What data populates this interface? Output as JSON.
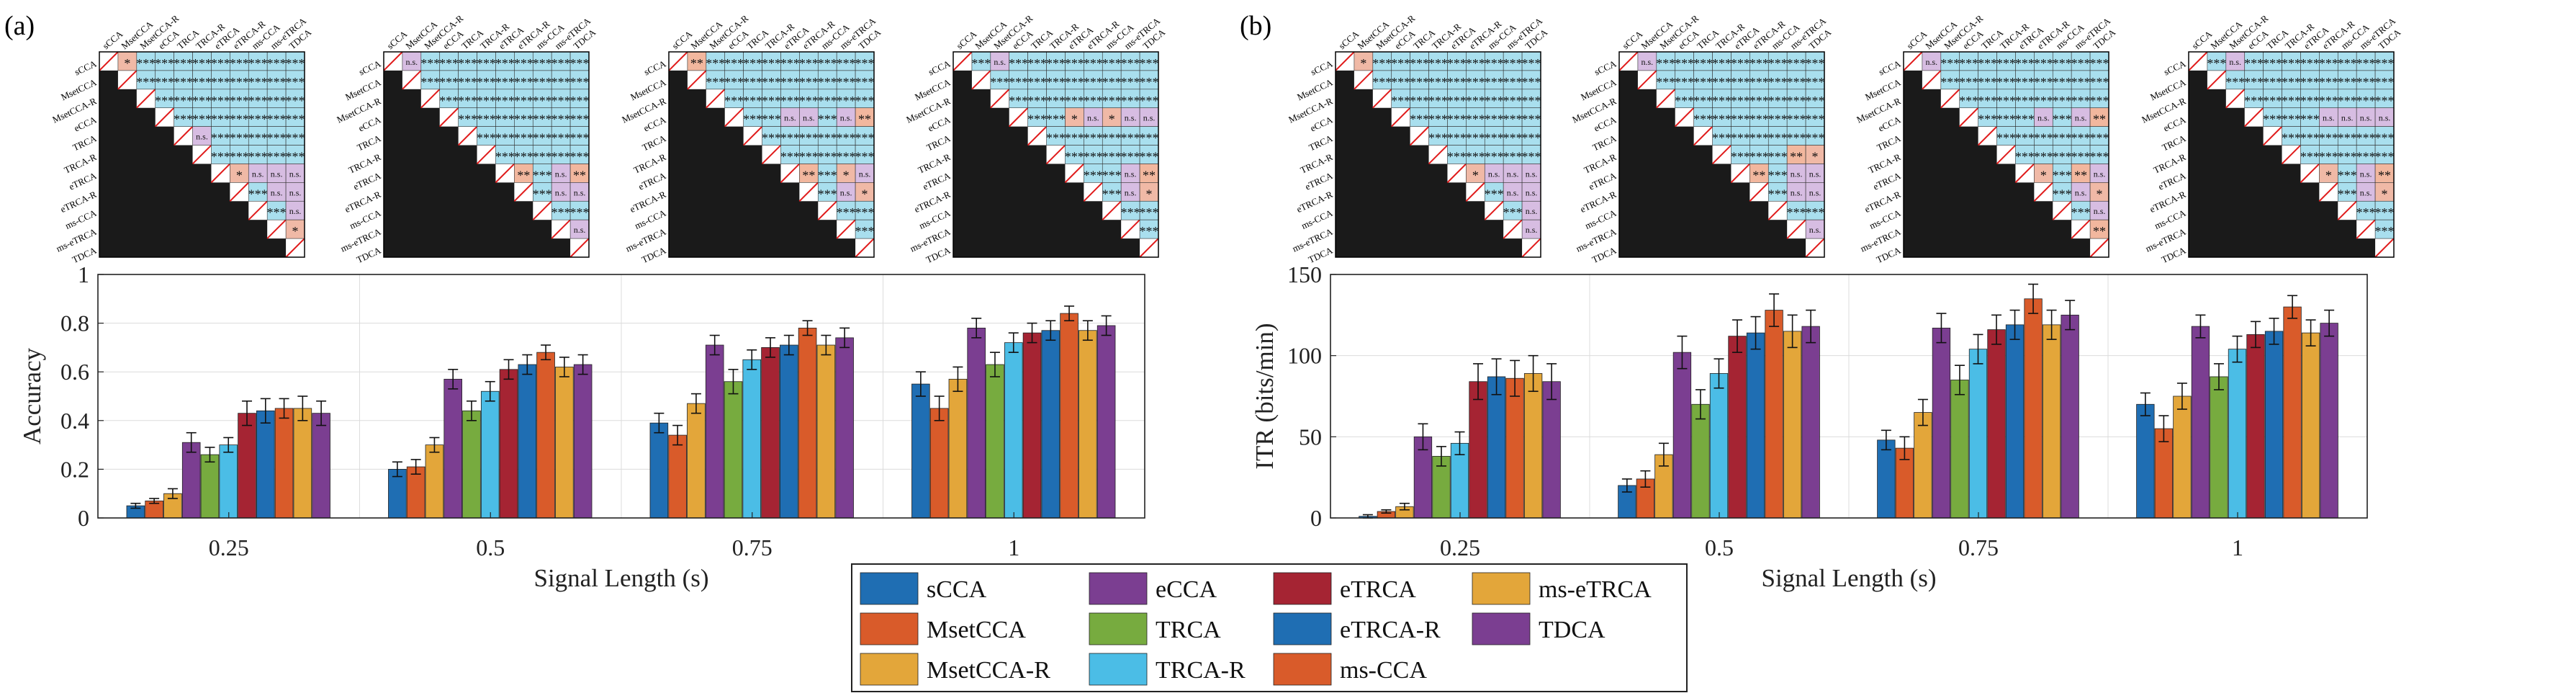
{
  "panel_labels": [
    "(a)",
    "(b)"
  ],
  "methods": [
    "sCCA",
    "MsetCCA",
    "MsetCCA-R",
    "eCCA",
    "TRCA",
    "TRCA-R",
    "eTRCA",
    "eTRCA-R",
    "ms-CCA",
    "ms-eTRCA",
    "TDCA"
  ],
  "method_colors": [
    "#1f6eb3",
    "#d95b2a",
    "#e3a63a",
    "#7b3e91",
    "#77ab3f",
    "#4bbde6",
    "#a52433",
    "#1f6eb3",
    "#d95b2a",
    "#e3a63a",
    "#7b3e91"
  ],
  "matrix_colors": {
    "sig3": "#a9dfee",
    "sig2": "#f2b79e",
    "sig1": "#f0b9a6",
    "ns": "#d7bde2",
    "black": "#1a1a1a",
    "diag": "#e01b1b"
  },
  "legend": {
    "entries": [
      "sCCA",
      "eCCA",
      "eTRCA",
      "ms-eTRCA",
      "MsetCCA",
      "TRCA",
      "eTRCA-R",
      "TDCA",
      "MsetCCA-R",
      "TRCA-R",
      "ms-CCA"
    ]
  },
  "chart_data": [
    {
      "type": "bar",
      "panel": "(a)",
      "xlabel": "Signal Length (s)",
      "ylabel": "Accuracy",
      "categories": [
        "0.25",
        "0.5",
        "0.75",
        "1"
      ],
      "ylim": [
        0,
        1
      ],
      "yticks": [
        "0",
        "0.2",
        "0.4",
        "0.6",
        "0.8",
        "1"
      ],
      "ytick_values": [
        0,
        0.2,
        0.4,
        0.6,
        0.8,
        1
      ],
      "grid": true,
      "series": [
        {
          "name": "sCCA",
          "values": [
            0.05,
            0.2,
            0.39,
            0.55
          ],
          "errors": [
            0.01,
            0.03,
            0.04,
            0.05
          ]
        },
        {
          "name": "MsetCCA",
          "values": [
            0.07,
            0.21,
            0.34,
            0.45
          ],
          "errors": [
            0.01,
            0.03,
            0.04,
            0.05
          ]
        },
        {
          "name": "MsetCCA-R",
          "values": [
            0.1,
            0.3,
            0.47,
            0.57
          ],
          "errors": [
            0.02,
            0.03,
            0.04,
            0.05
          ]
        },
        {
          "name": "eCCA",
          "values": [
            0.31,
            0.57,
            0.71,
            0.78
          ],
          "errors": [
            0.04,
            0.04,
            0.04,
            0.04
          ]
        },
        {
          "name": "TRCA",
          "values": [
            0.26,
            0.44,
            0.56,
            0.63
          ],
          "errors": [
            0.03,
            0.04,
            0.05,
            0.05
          ]
        },
        {
          "name": "TRCA-R",
          "values": [
            0.3,
            0.52,
            0.65,
            0.72
          ],
          "errors": [
            0.03,
            0.04,
            0.04,
            0.04
          ]
        },
        {
          "name": "eTRCA",
          "values": [
            0.43,
            0.61,
            0.7,
            0.76
          ],
          "errors": [
            0.05,
            0.04,
            0.04,
            0.04
          ]
        },
        {
          "name": "eTRCA-R",
          "values": [
            0.44,
            0.63,
            0.71,
            0.77
          ],
          "errors": [
            0.05,
            0.04,
            0.04,
            0.04
          ]
        },
        {
          "name": "ms-CCA",
          "values": [
            0.45,
            0.68,
            0.78,
            0.84
          ],
          "errors": [
            0.04,
            0.03,
            0.03,
            0.03
          ]
        },
        {
          "name": "ms-eTRCA",
          "values": [
            0.45,
            0.62,
            0.71,
            0.77
          ],
          "errors": [
            0.05,
            0.04,
            0.04,
            0.04
          ]
        },
        {
          "name": "TDCA",
          "values": [
            0.43,
            0.63,
            0.74,
            0.79
          ],
          "errors": [
            0.05,
            0.04,
            0.04,
            0.04
          ]
        }
      ]
    },
    {
      "type": "bar",
      "panel": "(b)",
      "xlabel": "Signal Length (s)",
      "ylabel": "ITR (bits/min)",
      "categories": [
        "0.25",
        "0.5",
        "0.75",
        "1"
      ],
      "ylim": [
        0,
        150
      ],
      "yticks": [
        "0",
        "50",
        "100",
        "150"
      ],
      "ytick_values": [
        0,
        50,
        100,
        150
      ],
      "grid": true,
      "series": [
        {
          "name": "sCCA",
          "values": [
            1,
            20,
            48,
            70
          ],
          "errors": [
            1,
            4,
            6,
            7
          ]
        },
        {
          "name": "MsetCCA",
          "values": [
            4,
            24,
            43,
            55
          ],
          "errors": [
            1,
            5,
            7,
            8
          ]
        },
        {
          "name": "MsetCCA-R",
          "values": [
            7,
            39,
            65,
            75
          ],
          "errors": [
            2,
            7,
            8,
            8
          ]
        },
        {
          "name": "eCCA",
          "values": [
            50,
            102,
            117,
            118
          ],
          "errors": [
            8,
            10,
            9,
            7
          ]
        },
        {
          "name": "TRCA",
          "values": [
            38,
            70,
            85,
            87
          ],
          "errors": [
            6,
            9,
            9,
            8
          ]
        },
        {
          "name": "TRCA-R",
          "values": [
            46,
            89,
            104,
            104
          ],
          "errors": [
            7,
            9,
            9,
            8
          ]
        },
        {
          "name": "eTRCA",
          "values": [
            84,
            112,
            116,
            113
          ],
          "errors": [
            11,
            10,
            9,
            8
          ]
        },
        {
          "name": "eTRCA-R",
          "values": [
            87,
            114,
            119,
            115
          ],
          "errors": [
            11,
            10,
            9,
            8
          ]
        },
        {
          "name": "ms-CCA",
          "values": [
            86,
            128,
            135,
            130
          ],
          "errors": [
            11,
            10,
            9,
            7
          ]
        },
        {
          "name": "ms-eTRCA",
          "values": [
            89,
            115,
            119,
            114
          ],
          "errors": [
            11,
            10,
            9,
            8
          ]
        },
        {
          "name": "TDCA",
          "values": [
            84,
            118,
            125,
            120
          ],
          "errors": [
            11,
            10,
            9,
            8
          ]
        }
      ]
    }
  ],
  "significance_matrices": [
    {
      "panel": "(a)",
      "length": "0.25",
      "upper_triangle": [
        [
          "*",
          "***",
          "***",
          "***",
          "***",
          "***",
          "***",
          "***",
          "***",
          "***"
        ],
        [
          "***",
          "***",
          "***",
          "***",
          "***",
          "***",
          "***",
          "***",
          "***"
        ],
        [
          "***",
          "***",
          "***",
          "***",
          "***",
          "***",
          "***",
          "***"
        ],
        [
          "***",
          "***",
          "***",
          "***",
          "***",
          "***",
          "***"
        ],
        [
          "n.s.",
          "***",
          "***",
          "***",
          "***",
          "***"
        ],
        [
          "***",
          "***",
          "***",
          "***",
          "***"
        ],
        [
          "*",
          "n.s.",
          "n.s.",
          "n.s."
        ],
        [
          "***",
          "n.s.",
          "n.s."
        ],
        [
          "***",
          "n.s."
        ],
        [
          "*"
        ]
      ]
    },
    {
      "panel": "(a)",
      "length": "0.5",
      "upper_triangle": [
        [
          "n.s.",
          "***",
          "***",
          "***",
          "***",
          "***",
          "***",
          "***",
          "***",
          "***"
        ],
        [
          "***",
          "***",
          "***",
          "***",
          "***",
          "***",
          "***",
          "***",
          "***"
        ],
        [
          "***",
          "***",
          "***",
          "***",
          "***",
          "***",
          "***",
          "***"
        ],
        [
          "***",
          "***",
          "***",
          "***",
          "***",
          "***",
          "***"
        ],
        [
          "***",
          "***",
          "***",
          "***",
          "***",
          "***"
        ],
        [
          "***",
          "***",
          "***",
          "***",
          "***"
        ],
        [
          "**",
          "***",
          "n.s.",
          "**"
        ],
        [
          "***",
          "n.s.",
          "n.s."
        ],
        [
          "***",
          "***"
        ],
        [
          "n.s."
        ]
      ]
    },
    {
      "panel": "(a)",
      "length": "0.75",
      "upper_triangle": [
        [
          "**",
          "***",
          "***",
          "***",
          "***",
          "***",
          "***",
          "***",
          "***",
          "***"
        ],
        [
          "***",
          "***",
          "***",
          "***",
          "***",
          "***",
          "***",
          "***",
          "***"
        ],
        [
          "***",
          "***",
          "***",
          "***",
          "***",
          "***",
          "***",
          "***"
        ],
        [
          "***",
          "***",
          "n.s.",
          "n.s.",
          "***",
          "n.s.",
          "**"
        ],
        [
          "***",
          "***",
          "***",
          "***",
          "***",
          "***"
        ],
        [
          "***",
          "***",
          "***",
          "***",
          "***"
        ],
        [
          "**",
          "***",
          "*",
          "n.s."
        ],
        [
          "***",
          "n.s.",
          "*"
        ],
        [
          "***",
          "***"
        ],
        [
          "***"
        ]
      ]
    },
    {
      "panel": "(a)",
      "length": "1",
      "upper_triangle": [
        [
          "***",
          "n.s.",
          "***",
          "***",
          "***",
          "***",
          "***",
          "***",
          "***",
          "***"
        ],
        [
          "***",
          "***",
          "***",
          "***",
          "***",
          "***",
          "***",
          "***",
          "***"
        ],
        [
          "***",
          "***",
          "***",
          "***",
          "***",
          "***",
          "***",
          "***"
        ],
        [
          "***",
          "***",
          "*",
          "n.s.",
          "*",
          "n.s.",
          "n.s."
        ],
        [
          "***",
          "***",
          "***",
          "***",
          "***",
          "***"
        ],
        [
          "***",
          "***",
          "***",
          "***",
          "***"
        ],
        [
          "***",
          "***",
          "n.s.",
          "**"
        ],
        [
          "***",
          "n.s.",
          "*"
        ],
        [
          "***",
          "***"
        ],
        [
          "***"
        ]
      ]
    },
    {
      "panel": "(b)",
      "length": "0.25",
      "upper_triangle": [
        [
          "*",
          "***",
          "***",
          "***",
          "***",
          "***",
          "***",
          "***",
          "***",
          "***"
        ],
        [
          "***",
          "***",
          "***",
          "***",
          "***",
          "***",
          "***",
          "***",
          "***"
        ],
        [
          "***",
          "***",
          "***",
          "***",
          "***",
          "***",
          "***",
          "***"
        ],
        [
          "***",
          "***",
          "***",
          "***",
          "***",
          "***",
          "***"
        ],
        [
          "***",
          "***",
          "***",
          "***",
          "***",
          "***"
        ],
        [
          "***",
          "***",
          "***",
          "***",
          "***"
        ],
        [
          "*",
          "n.s.",
          "n.s.",
          "n.s."
        ],
        [
          "***",
          "n.s.",
          "n.s."
        ],
        [
          "***",
          "n.s."
        ],
        [
          "n.s."
        ]
      ]
    },
    {
      "panel": "(b)",
      "length": "0.5",
      "upper_triangle": [
        [
          "n.s.",
          "***",
          "***",
          "***",
          "***",
          "***",
          "***",
          "***",
          "***",
          "***"
        ],
        [
          "***",
          "***",
          "***",
          "***",
          "***",
          "***",
          "***",
          "***",
          "***"
        ],
        [
          "***",
          "***",
          "***",
          "***",
          "***",
          "***",
          "***",
          "***"
        ],
        [
          "***",
          "***",
          "***",
          "***",
          "***",
          "***",
          "***"
        ],
        [
          "***",
          "***",
          "***",
          "***",
          "***",
          "***"
        ],
        [
          "***",
          "***",
          "***",
          "**",
          "*"
        ],
        [
          "**",
          "***",
          "n.s.",
          "n.s."
        ],
        [
          "***",
          "n.s.",
          "n.s."
        ],
        [
          "***",
          "***"
        ],
        [
          "n.s."
        ]
      ]
    },
    {
      "panel": "(b)",
      "length": "0.75",
      "upper_triangle": [
        [
          "n.s.",
          "***",
          "***",
          "***",
          "***",
          "***",
          "***",
          "***",
          "***",
          "***"
        ],
        [
          "***",
          "***",
          "***",
          "***",
          "***",
          "***",
          "***",
          "***",
          "***"
        ],
        [
          "***",
          "***",
          "***",
          "***",
          "***",
          "***",
          "***",
          "***"
        ],
        [
          "***",
          "***",
          "***",
          "n.s.",
          "***",
          "n.s.",
          "**"
        ],
        [
          "***",
          "***",
          "***",
          "***",
          "***",
          "***"
        ],
        [
          "***",
          "***",
          "***",
          "***",
          "***"
        ],
        [
          "*",
          "***",
          "**",
          "n.s."
        ],
        [
          "***",
          "n.s.",
          "*"
        ],
        [
          "***",
          "n.s."
        ],
        [
          "**"
        ]
      ]
    },
    {
      "panel": "(b)",
      "length": "1",
      "upper_triangle": [
        [
          "***",
          "n.s.",
          "***",
          "***",
          "***",
          "***",
          "***",
          "***",
          "***",
          "***"
        ],
        [
          "***",
          "***",
          "***",
          "***",
          "***",
          "***",
          "***",
          "***",
          "***"
        ],
        [
          "***",
          "***",
          "***",
          "***",
          "***",
          "***",
          "***",
          "***"
        ],
        [
          "***",
          "***",
          "***",
          "n.s.",
          "n.s.",
          "n.s.",
          "n.s."
        ],
        [
          "***",
          "***",
          "***",
          "***",
          "***",
          "***"
        ],
        [
          "***",
          "***",
          "***",
          "***",
          "***"
        ],
        [
          "*",
          "***",
          "n.s.",
          "**"
        ],
        [
          "***",
          "n.s.",
          "*"
        ],
        [
          "***",
          "***"
        ],
        [
          "***"
        ]
      ]
    }
  ]
}
